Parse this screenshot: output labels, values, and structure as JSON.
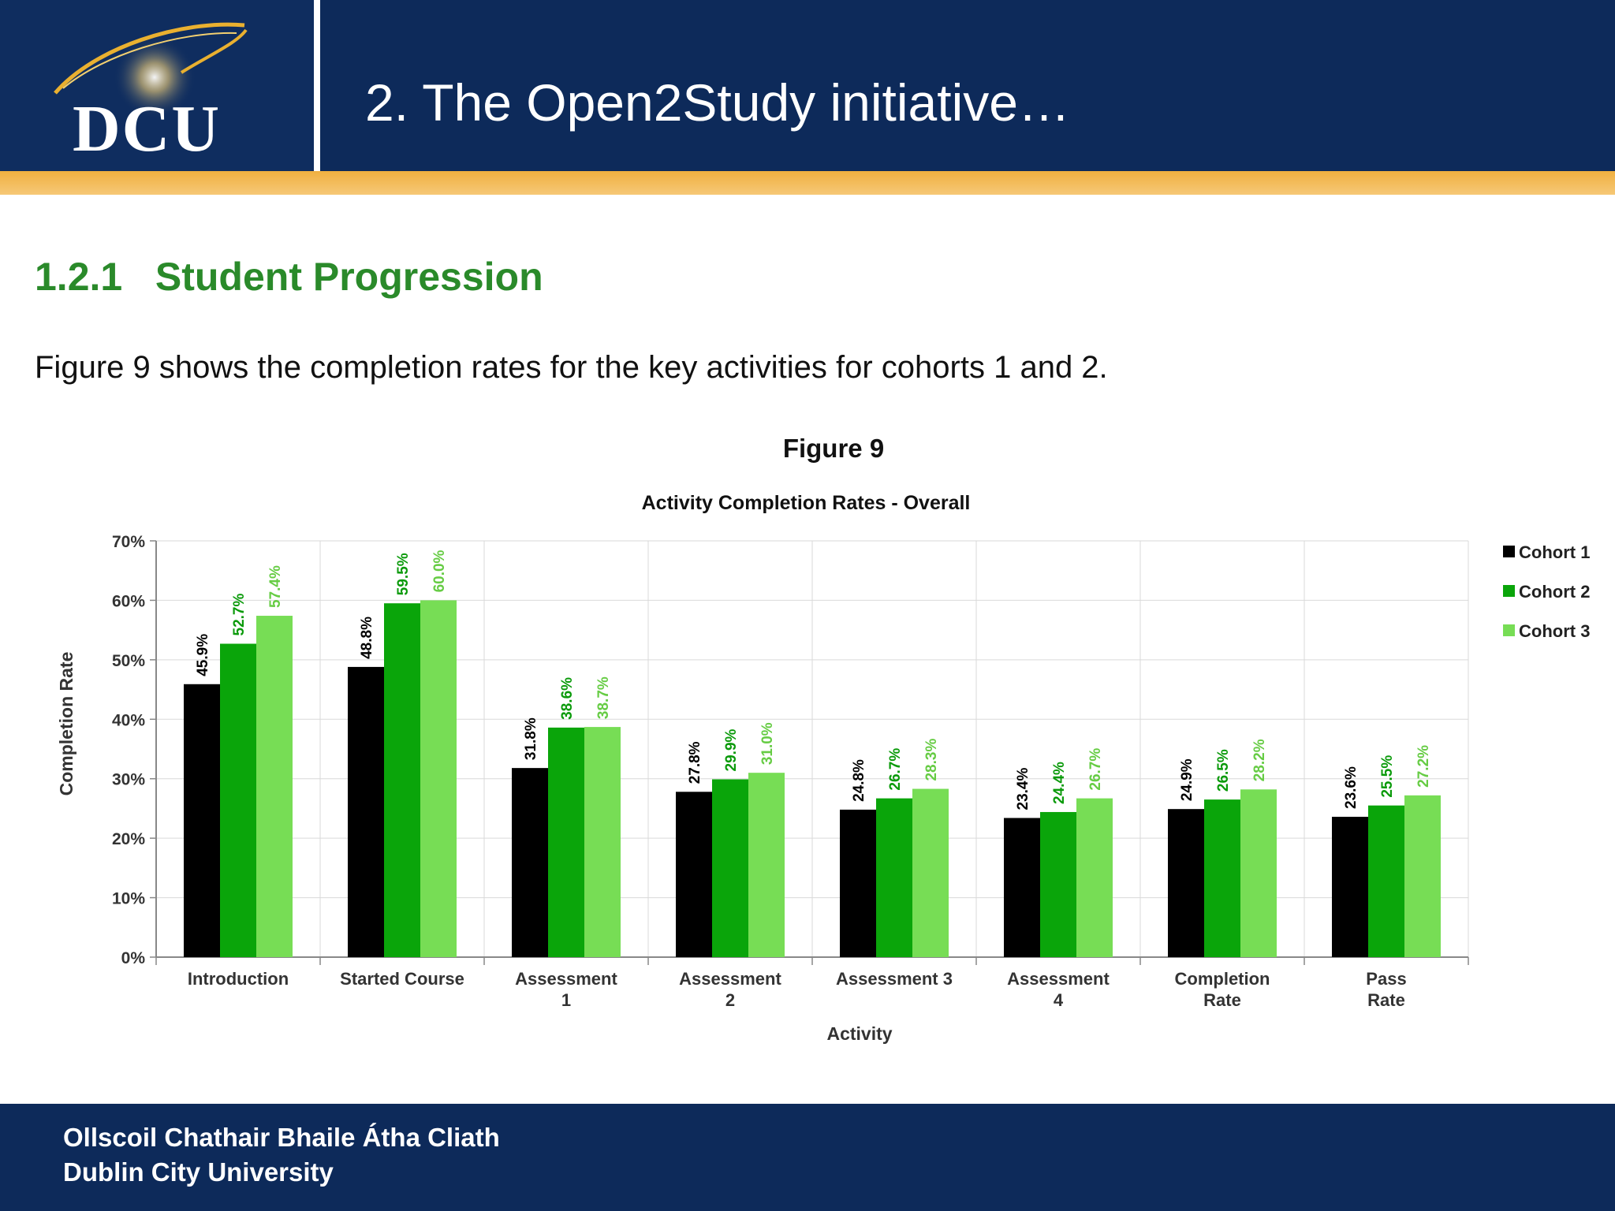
{
  "header": {
    "logo_text": "DCU",
    "title": "2. The Open2Study initiative…"
  },
  "section": {
    "title": "1.2.1   Student Progression",
    "intro": "Figure 9 shows the completion rates for the key activities for cohorts 1 and 2."
  },
  "footer": {
    "line1": "Ollscoil Chathair Bhaile Átha Cliath",
    "line2": "Dublin City University"
  },
  "colors": {
    "header_bg": "#0d2a5a",
    "accent": "#f0b040",
    "section_green": "#2a8a2a",
    "cohort1": "#000000",
    "cohort2": "#0aa50a",
    "cohort3": "#77dd55"
  },
  "chart_data": {
    "type": "bar",
    "title": "Figure 9",
    "subtitle": "Activity Completion Rates - Overall",
    "xlabel": "Activity",
    "ylabel": "Completion Rate",
    "ylim": [
      0,
      70
    ],
    "yticks": [
      "0%",
      "10%",
      "20%",
      "30%",
      "40%",
      "50%",
      "60%",
      "70%"
    ],
    "grid": true,
    "legend": "right",
    "categories": [
      [
        "Introduction"
      ],
      [
        "Started Course"
      ],
      [
        "Assessment",
        "1"
      ],
      [
        "Assessment",
        "2"
      ],
      [
        "Assessment       3"
      ],
      [
        "Assessment",
        "4"
      ],
      [
        "Completion",
        "Rate"
      ],
      [
        "Pass",
        "Rate"
      ]
    ],
    "series": [
      {
        "name": "Cohort 1",
        "color": "#000000",
        "values": [
          45.9,
          48.8,
          31.8,
          27.8,
          24.8,
          23.4,
          24.9,
          23.6
        ],
        "labels": [
          "45.9%",
          "48.8%",
          "31.8%",
          "27.8%",
          "24.8%",
          "23.4%",
          "24.9%",
          "23.6%"
        ]
      },
      {
        "name": "Cohort 2",
        "color": "#0aa50a",
        "values": [
          52.7,
          59.5,
          38.6,
          29.9,
          26.7,
          24.4,
          26.5,
          25.5
        ],
        "labels": [
          "52.7%",
          "59.5%",
          "38.6%",
          "29.9%",
          "26.7%",
          "24.4%",
          "26.5%",
          "25.5%"
        ]
      },
      {
        "name": "Cohort 3",
        "color": "#77dd55",
        "values": [
          57.4,
          60.0,
          38.7,
          31.0,
          28.3,
          26.7,
          28.2,
          27.2
        ],
        "labels": [
          "57.4%",
          "60.0%",
          "38.7%",
          "31.0%",
          "28.3%",
          "26.7%",
          "28.2%",
          "27.2%"
        ]
      }
    ]
  }
}
